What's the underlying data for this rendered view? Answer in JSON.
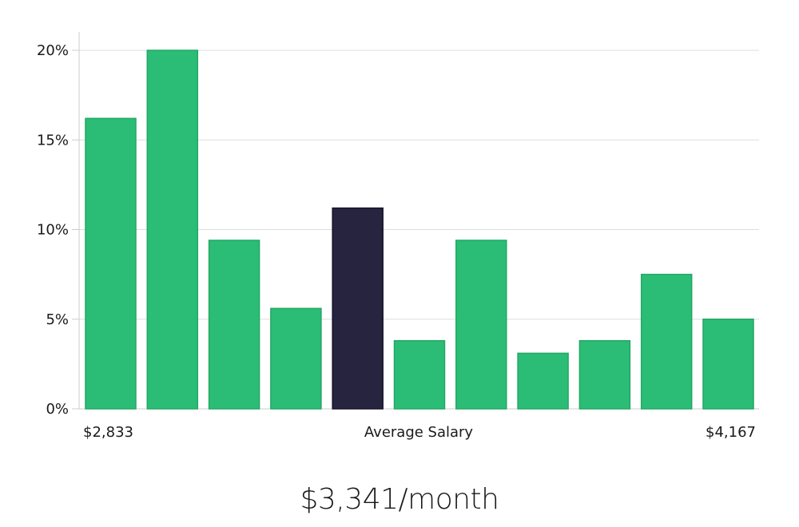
{
  "colors": {
    "bar": "#2bbd75",
    "highlight_bar": "#27243f",
    "grid": "#dddddd",
    "axis": "#cccccc",
    "text": "#1a1a1a"
  },
  "chart_data": {
    "type": "bar",
    "title": "",
    "xlabel": "Average Salary",
    "ylabel": "",
    "x_min_label": "$2,833",
    "x_max_label": "$4,167",
    "y_tick_values": [
      0,
      5,
      10,
      15,
      20
    ],
    "y_tick_labels": [
      "0%",
      "5%",
      "10%",
      "15%",
      "20%"
    ],
    "ylim": [
      0,
      21
    ],
    "grid": true,
    "highlight_index": 4,
    "values": [
      16.2,
      20.0,
      9.4,
      5.6,
      11.2,
      3.8,
      9.4,
      3.1,
      3.8,
      7.5,
      5.0
    ]
  },
  "summary": {
    "monthly_salary": "$3,341/month"
  }
}
